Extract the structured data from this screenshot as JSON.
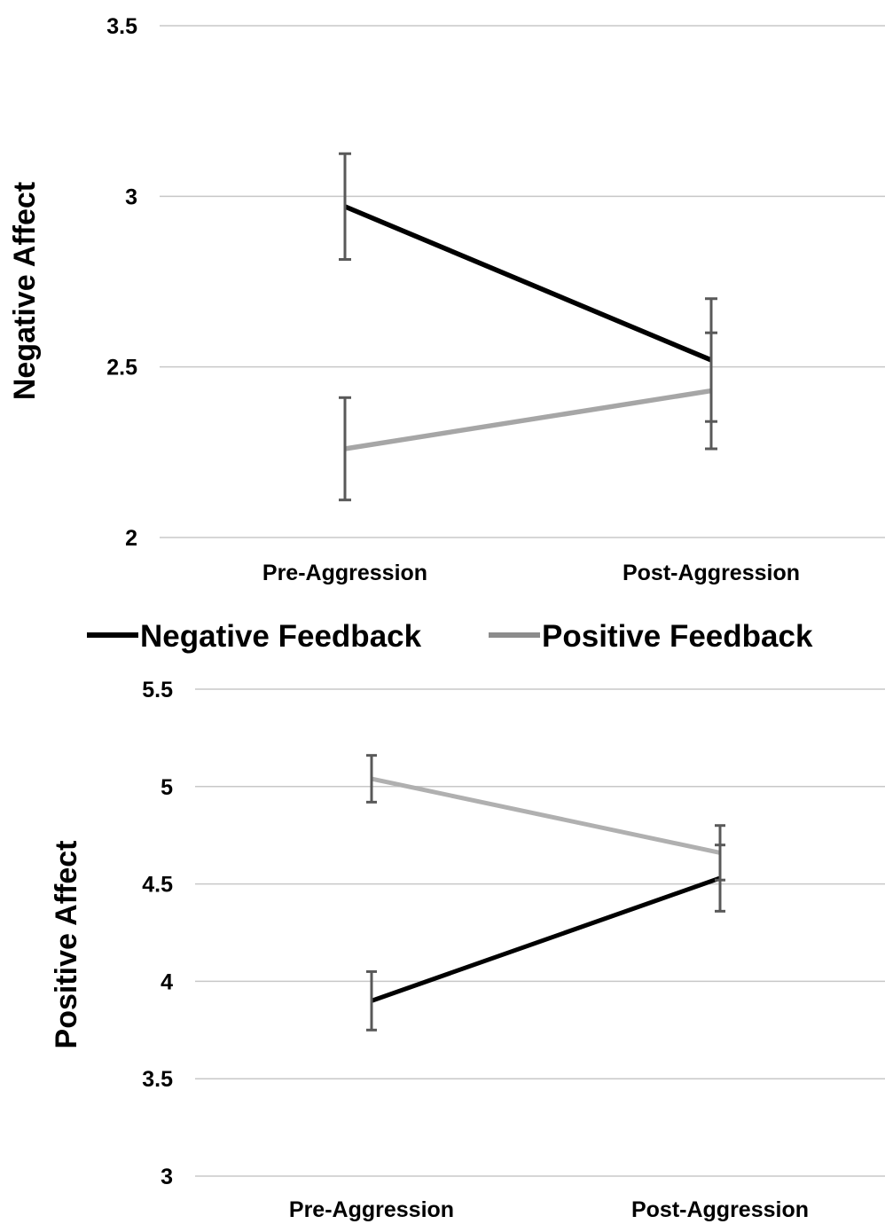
{
  "legend": {
    "position": "between-panels",
    "items": [
      {
        "label": "Negative Feedback",
        "color": "#000000"
      },
      {
        "label": "Positive Feedback",
        "color": "#8c8c8c"
      }
    ]
  },
  "chart_data": [
    {
      "type": "line",
      "ylabel": "Negative Affect",
      "xlabel": "",
      "categories": [
        "Pre-Aggression",
        "Post-Aggression"
      ],
      "ylim": [
        2,
        3.5
      ],
      "yticks": [
        "2",
        "2.5",
        "3",
        "3.5"
      ],
      "ytick_values": [
        2,
        2.5,
        3,
        3.5
      ],
      "grid": true,
      "series": [
        {
          "name": "Negative Feedback",
          "color": "#000000",
          "values": [
            2.97,
            2.52
          ],
          "error": [
            0.155,
            0.18
          ]
        },
        {
          "name": "Positive Feedback",
          "color": "#a6a6a6",
          "values": [
            2.26,
            2.43
          ],
          "error": [
            0.15,
            0.17
          ]
        }
      ]
    },
    {
      "type": "line",
      "ylabel": "Positive Affect",
      "xlabel": "",
      "categories": [
        "Pre-Aggression",
        "Post-Aggression"
      ],
      "ylim": [
        3,
        5.5
      ],
      "yticks": [
        "3",
        "3.5",
        "4",
        "4.5",
        "5",
        "5.5"
      ],
      "ytick_values": [
        3,
        3.5,
        4,
        4.5,
        5,
        5.5
      ],
      "grid": true,
      "series": [
        {
          "name": "Negative Feedback",
          "color": "#000000",
          "values": [
            3.9,
            4.53
          ],
          "error": [
            0.15,
            0.17
          ]
        },
        {
          "name": "Positive Feedback",
          "color": "#b0b0b0",
          "values": [
            5.04,
            4.66
          ],
          "error": [
            0.12,
            0.14
          ]
        }
      ]
    }
  ]
}
